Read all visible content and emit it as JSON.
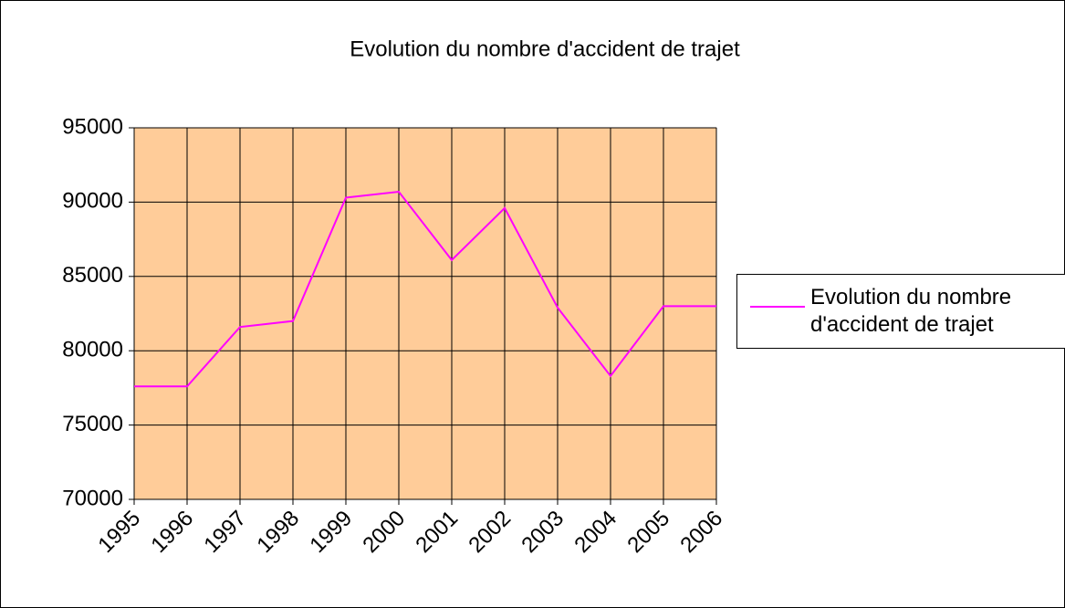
{
  "chart_data": {
    "type": "line",
    "title": "Evolution du nombre d'accident de trajet",
    "categories": [
      "1995",
      "1996",
      "1997",
      "1998",
      "1999",
      "2000",
      "2001",
      "2002",
      "2003",
      "2004",
      "2005",
      "2006"
    ],
    "series": [
      {
        "name": "Evolution du nombre d'accident de trajet",
        "color": "#ff00ff",
        "values": [
          77600,
          77600,
          81600,
          82000,
          90300,
          90700,
          86100,
          89600,
          82900,
          78300,
          83000,
          83000
        ]
      }
    ],
    "ylim": [
      70000,
      95000
    ],
    "yticks": [
      70000,
      75000,
      80000,
      85000,
      90000,
      95000
    ],
    "grid": true,
    "background": "#ffcc99",
    "legend": "right"
  }
}
